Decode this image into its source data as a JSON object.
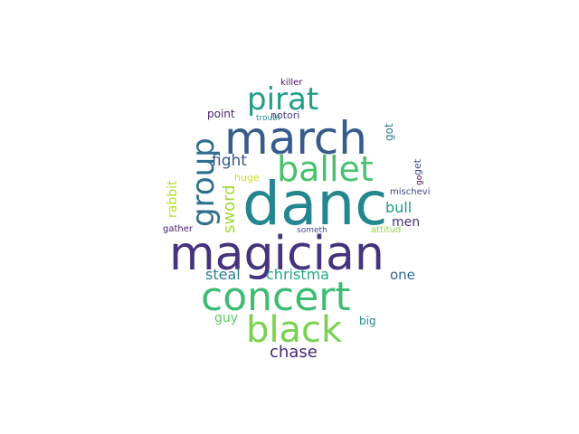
{
  "word_cloud": {
    "words": [
      {
        "text": "danc",
        "color": "#24868e"
      },
      {
        "text": "magician",
        "color": "#46337e"
      },
      {
        "text": "march",
        "color": "#365c8d"
      },
      {
        "text": "concert",
        "color": "#3dbc74"
      },
      {
        "text": "black",
        "color": "#7ad151"
      },
      {
        "text": "ballet",
        "color": "#4ac16d"
      },
      {
        "text": "pirat",
        "color": "#1f9e89"
      },
      {
        "text": "group",
        "color": "#2e6f8e"
      },
      {
        "text": "sword",
        "color": "#a0da39"
      },
      {
        "text": "fight",
        "color": "#39568c"
      },
      {
        "text": "christma",
        "color": "#22a884"
      },
      {
        "text": "chase",
        "color": "#482878"
      },
      {
        "text": "steal",
        "color": "#287d8e"
      },
      {
        "text": "bull",
        "color": "#1f988b"
      },
      {
        "text": "men",
        "color": "#472f7d"
      },
      {
        "text": "one",
        "color": "#31668e"
      },
      {
        "text": "guy",
        "color": "#5ec962"
      },
      {
        "text": "rabbit",
        "color": "#b5de2b"
      },
      {
        "text": "point",
        "color": "#482475"
      },
      {
        "text": "notori",
        "color": "#433e85"
      },
      {
        "text": "got",
        "color": "#2a788e"
      },
      {
        "text": "huge",
        "color": "#cae11f"
      },
      {
        "text": "get",
        "color": "#3b528b"
      },
      {
        "text": "go",
        "color": "#440154"
      },
      {
        "text": "mischevi",
        "color": "#414487"
      },
      {
        "text": "big",
        "color": "#26828e"
      },
      {
        "text": "killer",
        "color": "#471365"
      },
      {
        "text": "troubl",
        "color": "#25848e"
      },
      {
        "text": "gather",
        "color": "#481769"
      },
      {
        "text": "someth",
        "color": "#3e4a89"
      },
      {
        "text": "attitud",
        "color": "#8fd744"
      }
    ]
  }
}
